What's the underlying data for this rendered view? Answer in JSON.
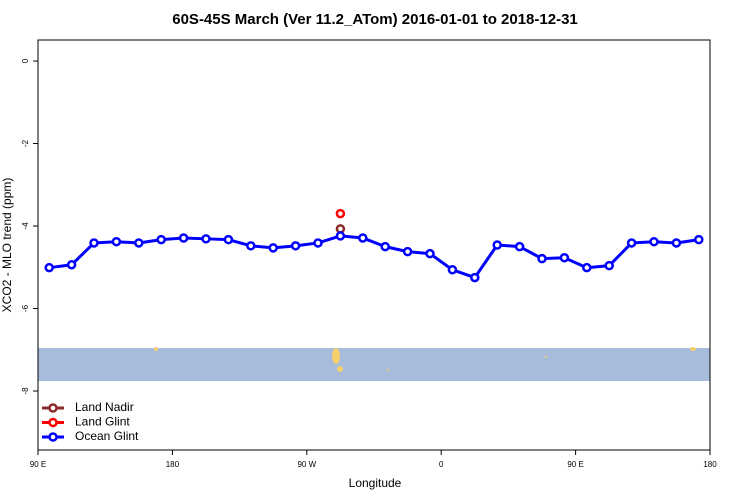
{
  "chart_data": {
    "type": "line",
    "title": "60S-45S March (Ver 11.2_ATom)   2016-01-01 to 2018-12-31",
    "x_label": "Longitude",
    "y_label": "XCO2 - MLO trend (ppm)",
    "xlim": [
      90,
      540
    ],
    "ylim": [
      -9.43,
      0.51
    ],
    "xticks": [
      {
        "value": 90,
        "label": "90 E"
      },
      180,
      {
        "value": 270,
        "label": "90 W"
      },
      {
        "value": 360,
        "label": "0"
      },
      {
        "value": 450,
        "label": "90 E"
      },
      {
        "value": 540,
        "label": "180"
      }
    ],
    "yticks": [
      0,
      -2,
      -4,
      -6,
      -8
    ],
    "legend": "bottom-left",
    "series": [
      {
        "name": "Land Nadir",
        "color": "#8b2a2a",
        "x": [
          292.5
        ],
        "values": [
          -4.07
        ]
      },
      {
        "name": "Land Glint",
        "color": "#ff0000",
        "x": [
          292.5
        ],
        "values": [
          -3.7
        ]
      },
      {
        "name": "Ocean Glint",
        "color": "#0000ff",
        "x": [
          97.5,
          112.5,
          127.5,
          142.5,
          157.5,
          172.5,
          187.5,
          202.5,
          217.5,
          232.5,
          247.5,
          262.5,
          277.5,
          292.5,
          307.5,
          322.5,
          337.5,
          352.5,
          367.5,
          382.5,
          397.5,
          412.5,
          427.5,
          442.5,
          457.5,
          472.5,
          487.5,
          502.5,
          517.5,
          532.5
        ],
        "values": [
          -5.01,
          -4.94,
          -4.41,
          -4.38,
          -4.41,
          -4.33,
          -4.29,
          -4.31,
          -4.33,
          -4.48,
          -4.53,
          -4.48,
          -4.41,
          -4.24,
          -4.29,
          -4.5,
          -4.62,
          -4.67,
          -5.06,
          -5.25,
          -4.46,
          -4.5,
          -4.79,
          -4.77,
          -5.01,
          -4.96,
          -4.41,
          -4.38,
          -4.41,
          -4.33
        ]
      }
    ]
  }
}
